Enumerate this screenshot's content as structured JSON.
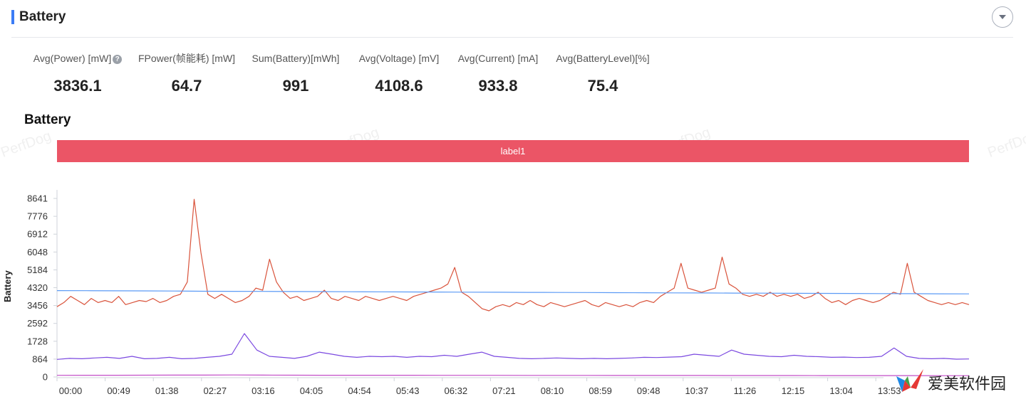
{
  "section": {
    "title": "Battery"
  },
  "metrics": [
    {
      "label": "Avg(Power) [mW]",
      "value": "3836.1",
      "help": "?"
    },
    {
      "label": "FPower(帧能耗) [mW]",
      "value": "64.7"
    },
    {
      "label": "Sum(Battery)[mWh]",
      "value": "991"
    },
    {
      "label": "Avg(Voltage) [mV]",
      "value": "4108.6"
    },
    {
      "label": "Avg(Current) [mA]",
      "value": "933.8"
    },
    {
      "label": "Avg(BatteryLevel)[%]",
      "value": "75.4"
    }
  ],
  "watermark": "PerfDog",
  "logo": {
    "text": "爱美软件园"
  },
  "chart_data": {
    "type": "line",
    "title": "Battery",
    "ylabel": "Battery",
    "xlabel": "",
    "label_band": "label1",
    "y_ticks": [
      0,
      864,
      1728,
      2592,
      3456,
      4320,
      5184,
      6048,
      6912,
      7776,
      8641
    ],
    "ylim": [
      0,
      8641
    ],
    "x_ticks": [
      "00:00",
      "00:49",
      "01:38",
      "02:27",
      "03:16",
      "04:05",
      "04:54",
      "05:43",
      "06:32",
      "07:21",
      "08:10",
      "08:59",
      "09:48",
      "10:37",
      "11:26",
      "12:15",
      "13:04",
      "13:53"
    ],
    "colors": {
      "power": "#d9533b",
      "voltage": "#5b9af5",
      "current": "#7b49e0",
      "level": "#c24dc7",
      "label_band": "#eb5566"
    },
    "series": [
      {
        "key": "power",
        "color": "#d9533b",
        "values": [
          3400,
          3600,
          3900,
          3700,
          3500,
          3800,
          3600,
          3700,
          3600,
          3900,
          3500,
          3600,
          3700,
          3650,
          3800,
          3600,
          3700,
          3900,
          4000,
          4600,
          8600,
          6000,
          4000,
          3800,
          4000,
          3800,
          3600,
          3700,
          3900,
          4300,
          4200,
          5700,
          4600,
          4100,
          3800,
          3900,
          3700,
          3800,
          3900,
          4200,
          3800,
          3700,
          3900,
          3800,
          3700,
          3900,
          3800,
          3700,
          3800,
          3900,
          3800,
          3700,
          3900,
          4000,
          4100,
          4200,
          4300,
          4500,
          5300,
          4100,
          3900,
          3600,
          3300,
          3200,
          3400,
          3500,
          3400,
          3600,
          3500,
          3700,
          3500,
          3400,
          3600,
          3500,
          3400,
          3500,
          3600,
          3700,
          3500,
          3400,
          3600,
          3500,
          3400,
          3500,
          3400,
          3600,
          3700,
          3600,
          3900,
          4100,
          4300,
          5500,
          4300,
          4200,
          4100,
          4200,
          4300,
          5800,
          4500,
          4300,
          4000,
          3900,
          4000,
          3900,
          4100,
          3900,
          4000,
          3900,
          4000,
          3800,
          3900,
          4100,
          3800,
          3600,
          3700,
          3500,
          3700,
          3800,
          3700,
          3600,
          3700,
          3900,
          4100,
          4000,
          5500,
          4100,
          3900,
          3700,
          3600,
          3500,
          3600,
          3500,
          3600,
          3500
        ]
      },
      {
        "key": "voltage",
        "color": "#5b9af5",
        "values": [
          4180,
          4175,
          4170,
          4165,
          4160,
          4150,
          4145,
          4140,
          4135,
          4130,
          4125,
          4120,
          4115,
          4110,
          4105,
          4100,
          4095,
          4090,
          4085,
          4080,
          4075,
          4070,
          4065,
          4060,
          4055,
          4050,
          4045,
          4040,
          4035,
          4030,
          4025,
          4020
        ]
      },
      {
        "key": "current",
        "color": "#7b49e0",
        "values": [
          850,
          900,
          880,
          920,
          950,
          900,
          1000,
          880,
          900,
          950,
          880,
          900,
          950,
          1000,
          1100,
          2100,
          1300,
          1000,
          950,
          900,
          1000,
          1200,
          1100,
          1000,
          950,
          1000,
          980,
          1000,
          950,
          1000,
          980,
          1050,
          1000,
          1100,
          1200,
          1000,
          950,
          900,
          880,
          900,
          920,
          900,
          880,
          900,
          880,
          900,
          920,
          950,
          940,
          960,
          980,
          1100,
          1050,
          1000,
          1300,
          1100,
          1050,
          1000,
          980,
          1050,
          1000,
          980,
          950,
          960,
          940,
          950,
          1000,
          1400,
          1000,
          900,
          880,
          900,
          860,
          870
        ]
      },
      {
        "key": "level",
        "color": "#c24dc7",
        "values": [
          80,
          82,
          84,
          86,
          88,
          90,
          95,
          88,
          86,
          84,
          83,
          82,
          81,
          80,
          79,
          78,
          77,
          76,
          75,
          74,
          73,
          72,
          71,
          70,
          69,
          68,
          67,
          66,
          65,
          64,
          63,
          62
        ]
      }
    ]
  }
}
